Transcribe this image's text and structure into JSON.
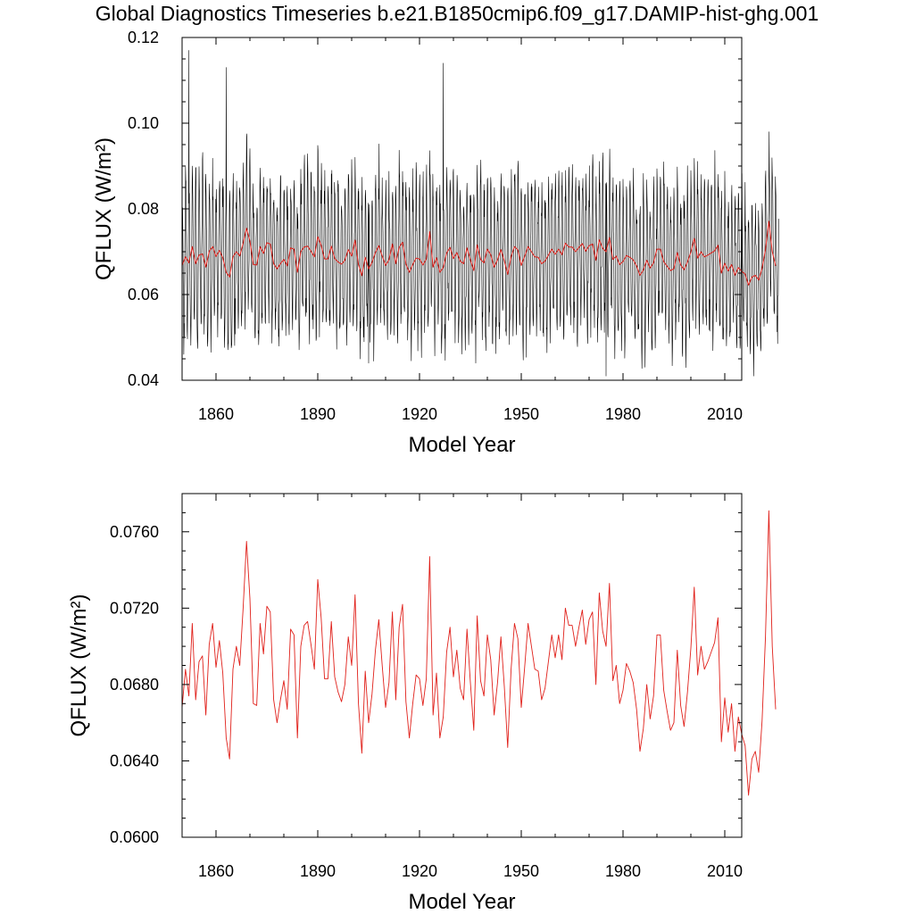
{
  "title": "Global Diagnostics Timeseries b.e21.B1850cmip6.f09_g17.DAMIP-hist-ghg.001",
  "colors": {
    "monthly": "#000000",
    "annual": "#e0201a",
    "axis": "#000000"
  },
  "chart_data": [
    {
      "type": "line",
      "xlabel": "Model Year",
      "ylabel": "QFLUX (W/m²)",
      "xlim": [
        1850,
        2015
      ],
      "ylim": [
        0.04,
        0.12
      ],
      "xticks": [
        "1860",
        "1890",
        "1920",
        "1950",
        "1980",
        "2010"
      ],
      "yticks": [
        "0.04",
        "0.06",
        "0.08",
        "0.10",
        "0.12"
      ],
      "series": [
        {
          "style": "monthly",
          "color": "#000000",
          "note_range": [
            0.041,
            0.117
          ],
          "seasonal_amplitude": 0.016,
          "peaks": [
            [
              1852,
              0.117
            ],
            [
              1863,
              0.113
            ],
            [
              1927,
              0.114
            ],
            [
              1975,
              0.041
            ],
            [
              1905,
              0.044
            ]
          ]
        },
        {
          "style": "annual",
          "color": "#e0201a",
          "source": "annual_means"
        }
      ]
    },
    {
      "type": "line",
      "xlabel": "Model Year",
      "ylabel": "QFLUX (W/m²)",
      "xlim": [
        1850,
        2015
      ],
      "ylim": [
        0.06,
        0.078
      ],
      "xticks": [
        "1860",
        "1890",
        "1920",
        "1950",
        "1980",
        "2010"
      ],
      "yticks": [
        "0.0600",
        "0.0640",
        "0.0680",
        "0.0720",
        "0.0760"
      ],
      "series": [
        {
          "style": "annual",
          "color": "#e0201a",
          "source": "annual_means"
        }
      ]
    }
  ],
  "annual_means": {
    "x_start": 1850,
    "values": [
      0.0668,
      0.0688,
      0.0674,
      0.0712,
      0.0672,
      0.0692,
      0.0695,
      0.0664,
      0.0701,
      0.0712,
      0.0689,
      0.0703,
      0.0686,
      0.0652,
      0.0641,
      0.0688,
      0.07,
      0.069,
      0.072,
      0.0755,
      0.0725,
      0.067,
      0.0669,
      0.0712,
      0.0696,
      0.0721,
      0.0718,
      0.0672,
      0.066,
      0.0672,
      0.0682,
      0.0667,
      0.0709,
      0.0706,
      0.0652,
      0.07,
      0.0711,
      0.0713,
      0.0701,
      0.0688,
      0.0735,
      0.0715,
      0.0683,
      0.0683,
      0.0713,
      0.0684,
      0.0676,
      0.0671,
      0.068,
      0.0705,
      0.069,
      0.0727,
      0.067,
      0.0644,
      0.0687,
      0.066,
      0.0675,
      0.0698,
      0.0714,
      0.069,
      0.0668,
      0.0681,
      0.0718,
      0.0672,
      0.071,
      0.0722,
      0.0671,
      0.0652,
      0.067,
      0.0685,
      0.0683,
      0.0669,
      0.0683,
      0.0747,
      0.0664,
      0.0686,
      0.0652,
      0.0663,
      0.0697,
      0.071,
      0.0684,
      0.0698,
      0.0678,
      0.0672,
      0.0709,
      0.0681,
      0.0656,
      0.0716,
      0.0682,
      0.0674,
      0.0706,
      0.0693,
      0.0664,
      0.0681,
      0.0705,
      0.0679,
      0.0647,
      0.0688,
      0.0712,
      0.0704,
      0.0668,
      0.0689,
      0.0712,
      0.07,
      0.0688,
      0.0687,
      0.0672,
      0.0678,
      0.0692,
      0.0706,
      0.0694,
      0.0706,
      0.0693,
      0.072,
      0.0711,
      0.0711,
      0.07,
      0.071,
      0.0719,
      0.0701,
      0.0714,
      0.0718,
      0.068,
      0.0728,
      0.0708,
      0.07,
      0.0733,
      0.0682,
      0.069,
      0.067,
      0.0677,
      0.0691,
      0.0687,
      0.0681,
      0.0667,
      0.0645,
      0.0657,
      0.068,
      0.0662,
      0.0674,
      0.0706,
      0.0706,
      0.0677,
      0.0666,
      0.0656,
      0.066,
      0.0698,
      0.0669,
      0.0658,
      0.0676,
      0.0699,
      0.0731,
      0.0685,
      0.07,
      0.0688,
      0.0692,
      0.0697,
      0.0702,
      0.0715,
      0.065,
      0.0673,
      0.0655,
      0.067,
      0.0645,
      0.0663,
      0.0654,
      0.0648,
      0.0622,
      0.0641,
      0.0645,
      0.0634,
      0.0661,
      0.0705,
      0.0771,
      0.07,
      0.0667
    ]
  }
}
